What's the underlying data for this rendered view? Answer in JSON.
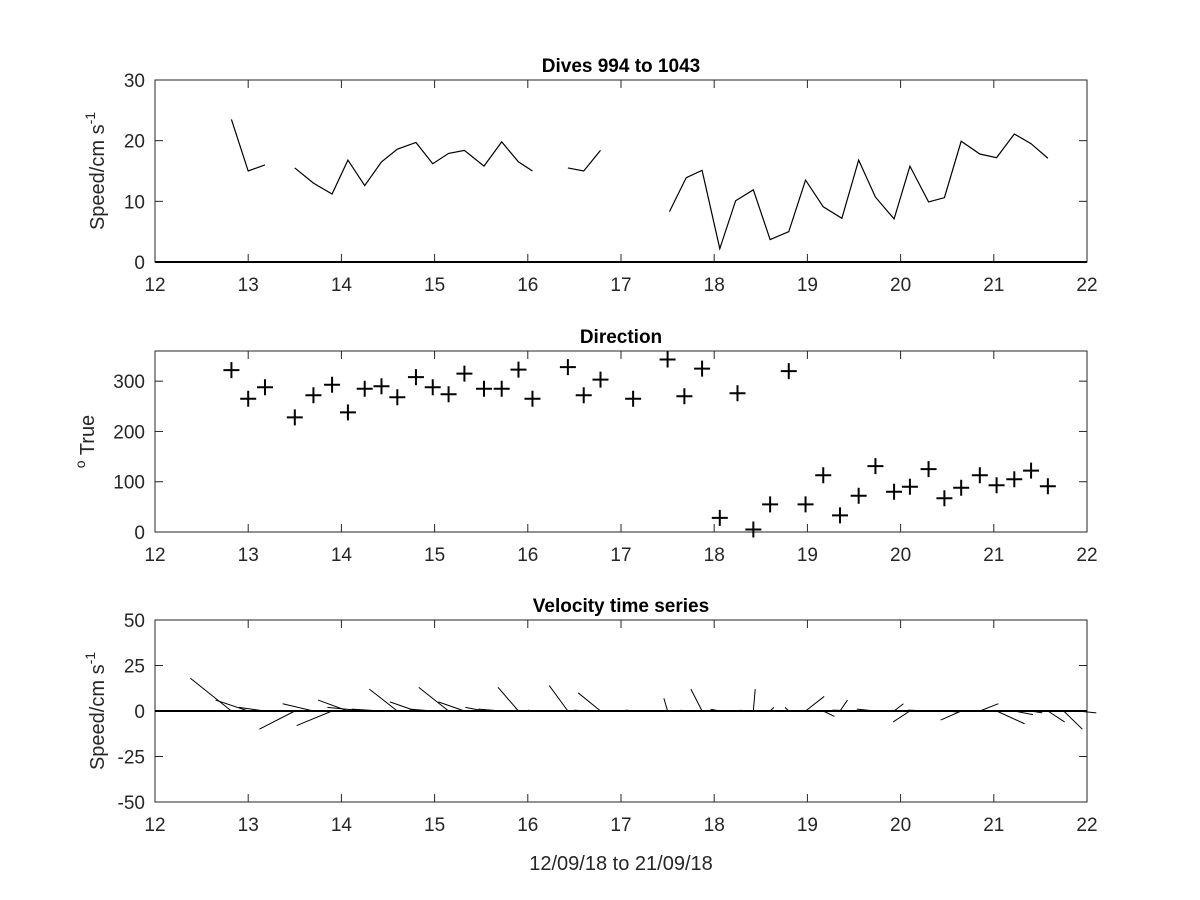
{
  "chart_data": [
    {
      "type": "line",
      "title": "Dives 994 to 1043",
      "ylabel": "Speed/cm s",
      "ylabel_exp": "-1",
      "xlim": [
        12,
        22
      ],
      "ylim": [
        0,
        30
      ],
      "xticks": [
        12,
        13,
        14,
        15,
        16,
        17,
        18,
        19,
        20,
        21,
        22
      ],
      "yticks": [
        0,
        10,
        20,
        30
      ],
      "zero_line": true,
      "segments": [
        [
          [
            12.82,
            23.5
          ],
          [
            13.0,
            15.0
          ],
          [
            13.18,
            16.0
          ]
        ],
        [
          [
            13.5,
            15.5
          ],
          [
            13.7,
            13.0
          ],
          [
            13.9,
            11.2
          ],
          [
            14.07,
            16.8
          ],
          [
            14.25,
            12.6
          ],
          [
            14.43,
            16.5
          ],
          [
            14.6,
            18.6
          ],
          [
            14.8,
            19.7
          ],
          [
            14.98,
            16.2
          ],
          [
            15.15,
            17.9
          ],
          [
            15.32,
            18.4
          ],
          [
            15.53,
            15.8
          ],
          [
            15.72,
            19.8
          ],
          [
            15.9,
            16.5
          ],
          [
            16.05,
            15.0
          ]
        ],
        [
          [
            16.43,
            15.5
          ],
          [
            16.6,
            15.0
          ],
          [
            16.78,
            18.4
          ]
        ],
        [
          [
            17.52,
            8.3
          ],
          [
            17.7,
            13.9
          ],
          [
            17.87,
            15.1
          ],
          [
            18.06,
            2.2
          ],
          [
            18.23,
            10.1
          ],
          [
            18.42,
            11.9
          ],
          [
            18.6,
            3.7
          ],
          [
            18.8,
            5.0
          ],
          [
            18.98,
            13.5
          ],
          [
            19.17,
            9.1
          ],
          [
            19.37,
            7.2
          ],
          [
            19.55,
            16.8
          ],
          [
            19.73,
            10.7
          ],
          [
            19.93,
            7.1
          ],
          [
            20.1,
            15.8
          ],
          [
            20.3,
            9.9
          ],
          [
            20.47,
            10.6
          ],
          [
            20.65,
            19.9
          ],
          [
            20.85,
            17.8
          ],
          [
            21.03,
            17.2
          ],
          [
            21.22,
            21.1
          ],
          [
            21.4,
            19.5
          ],
          [
            21.58,
            17.1
          ]
        ]
      ]
    },
    {
      "type": "scatter",
      "title": "Direction",
      "ylabel": "True",
      "ylabel_sup": "o",
      "xlim": [
        12,
        22
      ],
      "ylim": [
        0,
        360
      ],
      "xticks": [
        12,
        13,
        14,
        15,
        16,
        17,
        18,
        19,
        20,
        21,
        22
      ],
      "yticks": [
        0,
        100,
        200,
        300
      ],
      "marker": "plus",
      "points": [
        [
          12.82,
          322
        ],
        [
          13.0,
          265
        ],
        [
          13.18,
          288
        ],
        [
          13.5,
          228
        ],
        [
          13.7,
          272
        ],
        [
          13.9,
          293
        ],
        [
          14.07,
          238
        ],
        [
          14.25,
          285
        ],
        [
          14.43,
          290
        ],
        [
          14.6,
          268
        ],
        [
          14.8,
          308
        ],
        [
          14.98,
          288
        ],
        [
          15.15,
          274
        ],
        [
          15.32,
          315
        ],
        [
          15.53,
          285
        ],
        [
          15.72,
          285
        ],
        [
          15.9,
          323
        ],
        [
          16.05,
          265
        ],
        [
          16.43,
          328
        ],
        [
          16.6,
          272
        ],
        [
          16.78,
          303
        ],
        [
          17.13,
          265
        ],
        [
          17.5,
          343
        ],
        [
          17.68,
          270
        ],
        [
          17.87,
          325
        ],
        [
          18.06,
          28
        ],
        [
          18.25,
          276
        ],
        [
          18.42,
          5
        ],
        [
          18.6,
          55
        ],
        [
          18.8,
          320
        ],
        [
          18.98,
          55
        ],
        [
          19.17,
          113
        ],
        [
          19.35,
          33
        ],
        [
          19.55,
          72
        ],
        [
          19.73,
          131
        ],
        [
          19.93,
          80
        ],
        [
          20.1,
          90
        ],
        [
          20.3,
          125
        ],
        [
          20.47,
          67
        ],
        [
          20.65,
          88
        ],
        [
          20.85,
          113
        ],
        [
          21.03,
          93
        ],
        [
          21.22,
          105
        ],
        [
          21.4,
          122
        ],
        [
          21.58,
          91
        ]
      ]
    },
    {
      "type": "quiver",
      "title": "Velocity time series",
      "ylabel": "Speed/cm s",
      "ylabel_exp": "-1",
      "xlabel": "12/09/18 to 21/09/18",
      "xlim": [
        12,
        22
      ],
      "ylim": [
        -50,
        50
      ],
      "xticks": [
        12,
        13,
        14,
        15,
        16,
        17,
        18,
        19,
        20,
        21,
        22
      ],
      "yticks": [
        -50,
        -25,
        0,
        25,
        50
      ],
      "yticklabels": [
        "-50",
        "-25",
        "0",
        "25",
        "50"
      ],
      "zero_line": true,
      "vectors": [
        [
          12.82,
          -0.44,
          18.0
        ],
        [
          13.0,
          -0.35,
          6.0
        ],
        [
          13.18,
          -0.28,
          2.0
        ],
        [
          13.5,
          -0.38,
          -10.0
        ],
        [
          13.7,
          -0.33,
          4.0
        ],
        [
          13.9,
          -0.38,
          -8.0
        ],
        [
          14.07,
          -0.32,
          6.0
        ],
        [
          14.25,
          -0.4,
          2.0
        ],
        [
          14.43,
          -0.32,
          1.0
        ],
        [
          14.6,
          -0.3,
          12.0
        ],
        [
          14.8,
          -0.28,
          5.0
        ],
        [
          14.98,
          -0.25,
          1.0
        ],
        [
          15.15,
          -0.32,
          13.0
        ],
        [
          15.32,
          -0.28,
          5.0
        ],
        [
          15.53,
          -0.2,
          2.0
        ],
        [
          15.72,
          -0.25,
          1.0
        ],
        [
          15.9,
          -0.22,
          13.0
        ],
        [
          16.05,
          -0.05,
          0.5
        ],
        [
          16.43,
          -0.2,
          14.0
        ],
        [
          16.6,
          -0.1,
          0.5
        ],
        [
          16.78,
          -0.24,
          10.0
        ],
        [
          17.13,
          -0.08,
          0.5
        ],
        [
          17.5,
          -0.04,
          7.0
        ],
        [
          17.68,
          -0.04,
          0.5
        ],
        [
          17.87,
          -0.12,
          12.0
        ],
        [
          18.06,
          -0.1,
          1.0
        ],
        [
          18.25,
          0.04,
          0.5
        ],
        [
          18.42,
          0.02,
          12.0
        ],
        [
          18.6,
          0.04,
          2.0
        ],
        [
          18.8,
          -0.04,
          2.0
        ],
        [
          18.98,
          0.2,
          8.0
        ],
        [
          19.17,
          0.12,
          -3.0
        ],
        [
          19.35,
          0.08,
          6.0
        ],
        [
          19.55,
          -0.28,
          0.5
        ],
        [
          19.73,
          -0.2,
          1.0
        ],
        [
          19.93,
          0.1,
          4.0
        ],
        [
          20.1,
          -0.18,
          -6.0
        ],
        [
          20.3,
          -0.22,
          0.5
        ],
        [
          20.47,
          0.14,
          -0.5
        ],
        [
          20.65,
          -0.22,
          -5.0
        ],
        [
          20.85,
          0.2,
          4.0
        ],
        [
          21.03,
          0.3,
          -7.0
        ],
        [
          21.22,
          0.2,
          -2.0
        ],
        [
          21.4,
          0.12,
          -1.0
        ],
        [
          21.58,
          0.18,
          -6.0
        ],
        [
          21.75,
          0.2,
          -10.0
        ],
        [
          21.9,
          0.2,
          -1.0
        ]
      ]
    }
  ]
}
